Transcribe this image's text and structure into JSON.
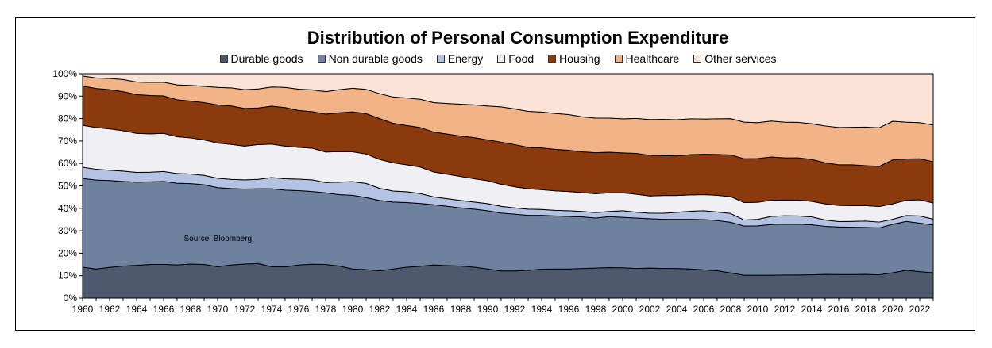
{
  "chart_data": {
    "type": "area",
    "stacked": true,
    "title": "Distribution of Personal Consumption Expenditure",
    "annotation": "Source: Bloomberg",
    "x": [
      1960,
      1961,
      1962,
      1963,
      1964,
      1965,
      1966,
      1967,
      1968,
      1969,
      1970,
      1971,
      1972,
      1973,
      1974,
      1975,
      1976,
      1977,
      1978,
      1979,
      1980,
      1981,
      1982,
      1983,
      1984,
      1985,
      1986,
      1987,
      1988,
      1989,
      1990,
      1991,
      1992,
      1993,
      1994,
      1995,
      1996,
      1997,
      1998,
      1999,
      2000,
      2001,
      2002,
      2003,
      2004,
      2005,
      2006,
      2007,
      2008,
      2009,
      2010,
      2011,
      2012,
      2013,
      2014,
      2015,
      2016,
      2017,
      2018,
      2019,
      2020,
      2021,
      2022,
      2023
    ],
    "x_tick_labels": [
      "1960",
      "1962",
      "1964",
      "1966",
      "1968",
      "1970",
      "1972",
      "1974",
      "1976",
      "1978",
      "1980",
      "1982",
      "1984",
      "1986",
      "1988",
      "1990",
      "1992",
      "1994",
      "1996",
      "1998",
      "2000",
      "2002",
      "2004",
      "2006",
      "2008",
      "2010",
      "2012",
      "2014",
      "2016",
      "2018",
      "2020",
      "2022"
    ],
    "y_tick_labels": [
      "0%",
      "10%",
      "20%",
      "30%",
      "40%",
      "50%",
      "60%",
      "70%",
      "80%",
      "90%",
      "100%"
    ],
    "ylim": [
      0,
      100
    ],
    "legend_position": "top",
    "grid": false,
    "series": [
      {
        "name": "Durable goods",
        "color": "#4d5a6d",
        "values": [
          13.8,
          13.0,
          13.7,
          14.3,
          14.6,
          15.0,
          15.0,
          14.8,
          15.2,
          15.0,
          14.0,
          14.8,
          15.2,
          15.4,
          14.0,
          13.9,
          14.8,
          15.1,
          15.0,
          14.3,
          13.0,
          12.7,
          12.2,
          13.0,
          13.8,
          14.2,
          14.8,
          14.5,
          14.3,
          13.8,
          13.0,
          12.1,
          12.1,
          12.4,
          12.9,
          13.0,
          13.0,
          13.2,
          13.4,
          13.6,
          13.5,
          13.2,
          13.4,
          13.2,
          13.2,
          13.0,
          12.6,
          12.2,
          11.2,
          10.2,
          10.2,
          10.2,
          10.3,
          10.3,
          10.4,
          10.6,
          10.5,
          10.5,
          10.6,
          10.4,
          11.3,
          12.4,
          11.8,
          11.3
        ]
      },
      {
        "name": "Non durable goods",
        "color": "#6e82a0",
        "values": [
          39.5,
          39.6,
          38.7,
          37.7,
          37.1,
          36.8,
          37.0,
          36.4,
          35.8,
          35.5,
          35.2,
          34.0,
          33.4,
          33.3,
          34.7,
          34.2,
          33.1,
          32.4,
          31.9,
          31.8,
          32.8,
          32.1,
          31.3,
          29.8,
          28.8,
          28.0,
          26.8,
          26.4,
          25.9,
          25.8,
          25.9,
          25.8,
          25.3,
          24.5,
          24.0,
          23.6,
          23.4,
          23.0,
          22.3,
          22.7,
          22.5,
          22.5,
          22.0,
          21.9,
          21.9,
          22.1,
          22.4,
          22.4,
          22.6,
          21.9,
          22.0,
          22.6,
          22.6,
          22.6,
          22.3,
          21.4,
          21.2,
          21.1,
          20.9,
          20.9,
          21.6,
          21.8,
          21.6,
          21.3
        ]
      },
      {
        "name": "Energy",
        "color": "#b4c3e3",
        "values": [
          5.0,
          4.8,
          4.6,
          4.6,
          4.3,
          4.3,
          4.4,
          4.3,
          4.3,
          4.2,
          4.2,
          4.1,
          4.1,
          4.2,
          5.0,
          5.1,
          5.1,
          5.2,
          4.6,
          5.6,
          6.1,
          6.3,
          5.4,
          4.9,
          4.8,
          4.4,
          3.5,
          3.4,
          3.3,
          3.2,
          3.2,
          3.0,
          2.8,
          2.7,
          2.6,
          2.5,
          2.5,
          2.4,
          2.4,
          2.3,
          2.9,
          2.6,
          2.4,
          2.7,
          3.1,
          3.6,
          3.9,
          3.8,
          3.9,
          2.7,
          2.9,
          3.6,
          3.8,
          3.7,
          3.5,
          2.8,
          2.4,
          2.6,
          2.8,
          2.6,
          2.2,
          2.6,
          3.2,
          2.6
        ]
      },
      {
        "name": "Food",
        "color": "#f0f0f4",
        "values": [
          18.7,
          18.6,
          18.4,
          18.0,
          17.4,
          17.1,
          17.0,
          16.4,
          16.1,
          15.8,
          15.7,
          15.6,
          15.0,
          15.5,
          14.9,
          14.5,
          14.2,
          14.1,
          13.6,
          13.6,
          13.3,
          13.1,
          12.9,
          12.6,
          12.0,
          11.8,
          11.1,
          10.9,
          10.7,
          10.4,
          10.2,
          9.8,
          9.4,
          9.1,
          8.8,
          8.7,
          8.6,
          8.4,
          8.4,
          8.3,
          8.0,
          8.0,
          7.7,
          7.9,
          7.5,
          7.3,
          7.2,
          7.4,
          7.5,
          7.8,
          7.6,
          7.2,
          7.0,
          7.1,
          6.9,
          7.2,
          7.2,
          7.0,
          6.9,
          6.9,
          6.9,
          6.8,
          7.2,
          7.2
        ]
      },
      {
        "name": "Housing",
        "color": "#8b3a0e",
        "values": [
          17.5,
          17.4,
          17.5,
          17.4,
          17.3,
          17.1,
          16.7,
          16.5,
          16.4,
          16.6,
          17.0,
          17.1,
          16.8,
          16.3,
          16.9,
          17.2,
          16.4,
          16.3,
          16.9,
          17.3,
          17.8,
          18.0,
          18.2,
          17.6,
          17.5,
          17.6,
          17.8,
          17.9,
          18.0,
          18.3,
          18.2,
          18.8,
          18.8,
          18.5,
          18.6,
          18.5,
          18.4,
          18.2,
          18.3,
          18.1,
          17.8,
          18.2,
          18.1,
          17.8,
          17.7,
          17.9,
          18.0,
          18.2,
          18.6,
          19.5,
          19.5,
          19.3,
          18.8,
          18.8,
          18.7,
          18.3,
          18.1,
          18.2,
          17.8,
          17.9,
          19.6,
          18.4,
          18.3,
          18.4
        ]
      },
      {
        "name": "Healthcare",
        "color": "#f2b386",
        "values": [
          4.5,
          4.7,
          5.0,
          5.4,
          5.6,
          5.8,
          6.1,
          6.6,
          7.0,
          7.3,
          7.8,
          8.1,
          8.4,
          8.5,
          8.6,
          9.0,
          9.5,
          9.7,
          10.0,
          10.3,
          10.5,
          10.8,
          11.1,
          11.7,
          12.3,
          12.6,
          13.1,
          13.6,
          14.2,
          14.6,
          15.1,
          15.7,
          15.9,
          16.0,
          16.0,
          16.0,
          15.9,
          15.6,
          15.4,
          15.2,
          15.2,
          15.6,
          16.0,
          16.2,
          16.1,
          16.0,
          15.7,
          15.9,
          16.2,
          16.3,
          16.0,
          16.0,
          15.9,
          15.8,
          15.9,
          16.4,
          16.6,
          16.7,
          17.2,
          17.2,
          17.2,
          16.4,
          16.1,
          16.3
        ]
      },
      {
        "name": "Other services",
        "color": "#fbe4d6",
        "values": [
          1.0,
          1.9,
          2.1,
          2.6,
          3.7,
          3.9,
          3.8,
          5.0,
          5.2,
          5.6,
          6.1,
          6.3,
          7.1,
          6.8,
          5.9,
          6.1,
          6.9,
          7.2,
          8.0,
          7.1,
          6.5,
          7.0,
          8.9,
          10.4,
          10.8,
          11.4,
          12.9,
          13.3,
          13.6,
          13.9,
          14.4,
          14.8,
          15.7,
          16.8,
          17.1,
          17.7,
          18.2,
          19.2,
          19.8,
          19.8,
          20.1,
          19.9,
          20.4,
          20.3,
          20.5,
          20.1,
          20.2,
          20.1,
          20.0,
          21.6,
          21.8,
          21.1,
          21.6,
          21.7,
          22.3,
          23.3,
          24.0,
          23.9,
          23.8,
          24.1,
          21.2,
          21.6,
          21.8,
          22.9
        ]
      }
    ]
  }
}
